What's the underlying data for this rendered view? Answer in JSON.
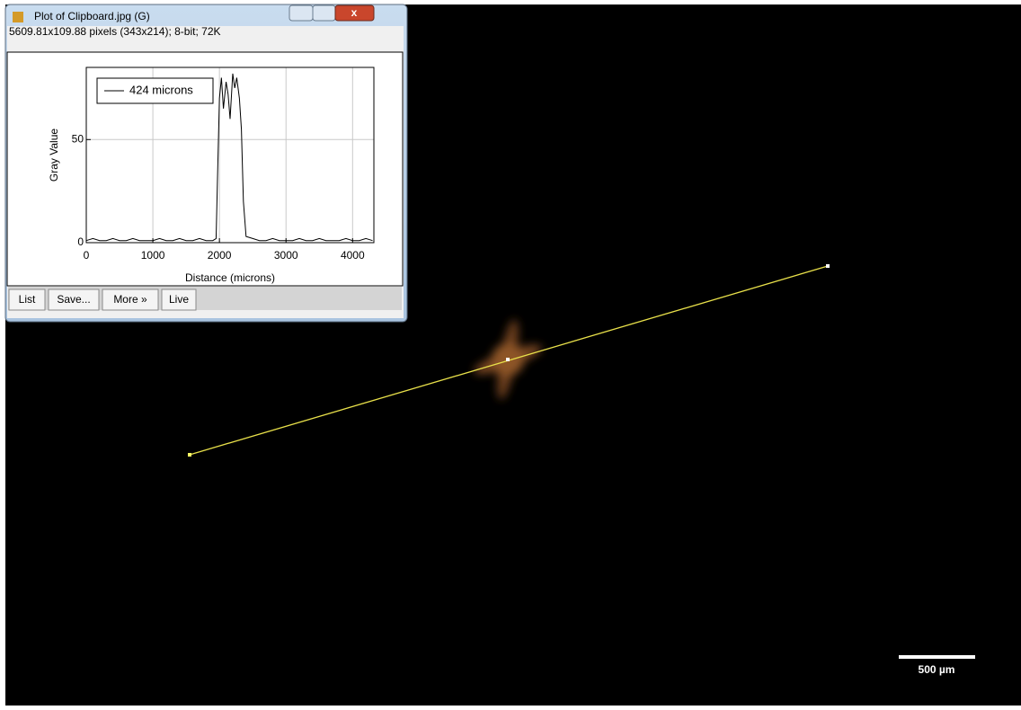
{
  "window": {
    "title": "Plot of Clipboard.jpg (G)",
    "info": "5609.81x109.88 pixels (343x214); 8-bit; 72K",
    "buttons": [
      "List",
      "Save...",
      "More »",
      "Live"
    ]
  },
  "chart_data": {
    "type": "line",
    "xlabel": "Distance (microns)",
    "ylabel": "Gray Value",
    "x": [
      0,
      100,
      200,
      300,
      400,
      500,
      600,
      700,
      800,
      900,
      1000,
      1100,
      1200,
      1300,
      1400,
      1500,
      1600,
      1700,
      1800,
      1900,
      1950,
      1970,
      2000,
      2030,
      2060,
      2100,
      2130,
      2160,
      2200,
      2230,
      2260,
      2300,
      2330,
      2360,
      2400,
      2500,
      2600,
      2700,
      2800,
      2900,
      3000,
      3100,
      3200,
      3300,
      3400,
      3500,
      3600,
      3700,
      3800,
      3900,
      4000,
      4100,
      4200,
      4300
    ],
    "series": [
      {
        "name": "424 microns",
        "color": "#000000",
        "values": [
          1,
          2,
          1,
          1,
          2,
          1,
          1,
          2,
          1,
          1,
          1,
          2,
          1,
          1,
          2,
          1,
          1,
          2,
          1,
          1,
          2,
          30,
          70,
          80,
          65,
          78,
          72,
          60,
          82,
          75,
          80,
          70,
          55,
          20,
          3,
          2,
          1,
          1,
          2,
          1,
          1,
          1,
          2,
          1,
          1,
          2,
          1,
          1,
          1,
          2,
          1,
          1,
          2,
          1
        ]
      }
    ],
    "xlim": [
      0,
      4320
    ],
    "ylim": [
      0,
      85
    ],
    "xticks": [
      0,
      1000,
      2000,
      3000,
      4000
    ],
    "yticks": [
      0,
      50
    ],
    "grid": true,
    "legend": "upper left"
  },
  "scale_bar": {
    "label": "500 µm"
  }
}
